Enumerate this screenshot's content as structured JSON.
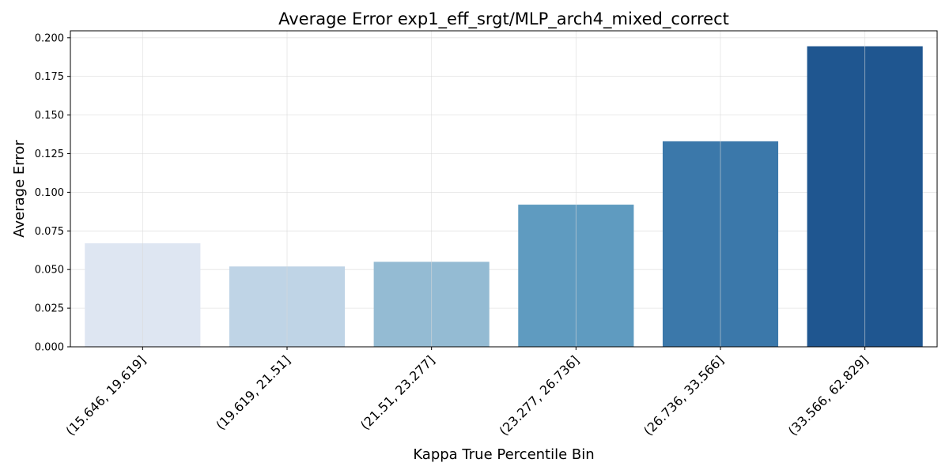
{
  "chart_data": {
    "type": "bar",
    "title": "Average Error exp1_eff_srgt/MLP_arch4_mixed_correct",
    "xlabel": "Kappa True Percentile Bin",
    "ylabel": "Average Error",
    "categories": [
      "(15.646, 19.619]",
      "(19.619, 21.51]",
      "(21.51, 23.277]",
      "(23.277, 26.736]",
      "(26.736, 33.566]",
      "(33.566, 62.829]"
    ],
    "values": [
      0.067,
      0.052,
      0.055,
      0.092,
      0.133,
      0.1945
    ],
    "colors": [
      "#dee6f2",
      "#bfd4e6",
      "#94bbd3",
      "#5f9bc0",
      "#3b78aa",
      "#1f5690"
    ],
    "ylim": [
      0,
      0.2045
    ],
    "yticks": [
      "0.000",
      "0.025",
      "0.050",
      "0.075",
      "0.100",
      "0.125",
      "0.150",
      "0.175",
      "0.200"
    ],
    "ytick_values": [
      0,
      0.025,
      0.05,
      0.075,
      0.1,
      0.125,
      0.15,
      0.175,
      0.2
    ],
    "grid": true
  }
}
